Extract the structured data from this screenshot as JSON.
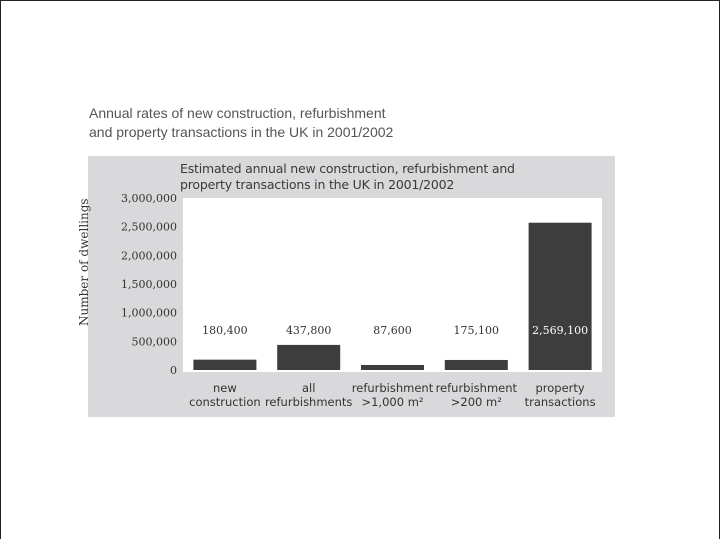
{
  "caption": {
    "line1": "Annual rates of new construction, refurbishment",
    "line2": "and property transactions in the UK in 2001/2002"
  },
  "colors": {
    "figure_background": "#d9d9db",
    "plot_background": "#ffffff",
    "bar": "#3d3d3d",
    "text": "#333333"
  },
  "chart_data": {
    "type": "bar",
    "title": "Estimated annual new construction, refurbishment and property transactions in the UK in 2001/2002",
    "title_lines": [
      "Estimated annual new construction, refurbishment and",
      "property transactions in the UK in 2001/2002"
    ],
    "xlabel": "",
    "ylabel": "Number of dwellings",
    "ylim": [
      0,
      3000000
    ],
    "yticks": [
      0,
      500000,
      1000000,
      1500000,
      2000000,
      2500000,
      3000000
    ],
    "ytick_labels": [
      "0",
      "500,000",
      "1,000,000",
      "1,500,000",
      "2,000,000",
      "2,500,000",
      "3,000,000"
    ],
    "grid": false,
    "categories": [
      "new construction",
      "all refurbishments",
      "refurbishment >1,000 m²",
      "refurbishment >200 m²",
      "property transactions"
    ],
    "category_lines": [
      [
        "new",
        "construction"
      ],
      [
        "all",
        "refurbishments"
      ],
      [
        "refurbishment",
        ">1,000 m²"
      ],
      [
        "refurbishment",
        ">200 m²"
      ],
      [
        "property",
        "transactions"
      ]
    ],
    "values": [
      180400,
      437800,
      87600,
      175100,
      2569100
    ],
    "value_labels": [
      "180,400",
      "437,800",
      "87,600",
      "175,100",
      "2,569,100"
    ]
  }
}
